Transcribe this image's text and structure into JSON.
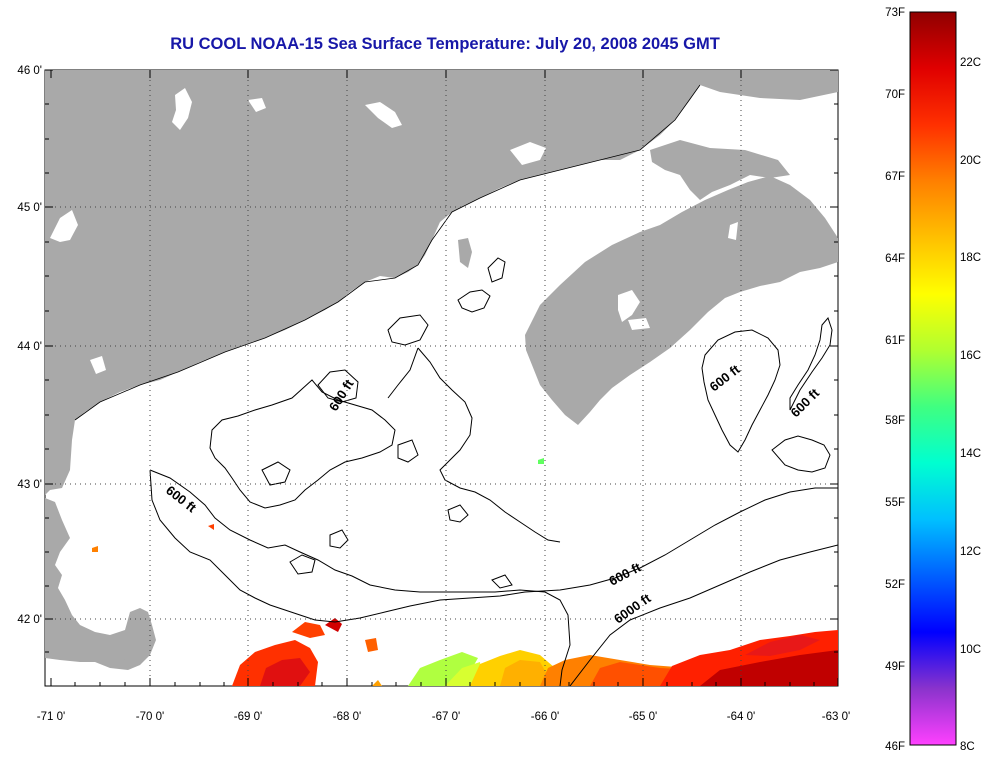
{
  "title": "RU COOL  NOAA-15  Sea Surface Temperature:  July 20, 2008 2045 GMT",
  "map": {
    "lat_labels": [
      "46 0'",
      "45 0'",
      "44 0'",
      "43 0'",
      "42 0'"
    ],
    "lon_labels": [
      "-71 0'",
      "-70 0'",
      "-69 0'",
      "-68 0'",
      "-67 0'",
      "-66 0'",
      "-65 0'",
      "-64 0'",
      "-63 0'"
    ],
    "contour_labels": [
      "600 ft",
      "600 ft",
      "600 ft",
      "600 ft",
      "600 ft",
      "6000 ft"
    ],
    "colors": {
      "land": "#a9a9a9",
      "ocean": "#ffffff",
      "contour": "#000000"
    }
  },
  "colorbar": {
    "fahrenheit_labels": [
      "73F",
      "70F",
      "67F",
      "64F",
      "61F",
      "58F",
      "55F",
      "52F",
      "49F",
      "46F"
    ],
    "celsius_labels": [
      "22C",
      "20C",
      "18C",
      "16C",
      "14C",
      "12C",
      "10C",
      "8C"
    ],
    "stops": [
      "#ff40ff",
      "#8a33cc",
      "#0000ff",
      "#0060ff",
      "#00c0ff",
      "#00ffd0",
      "#40ff80",
      "#b0ff30",
      "#ffff00",
      "#ffc000",
      "#ff8000",
      "#ff3000",
      "#e00000",
      "#900000"
    ]
  }
}
